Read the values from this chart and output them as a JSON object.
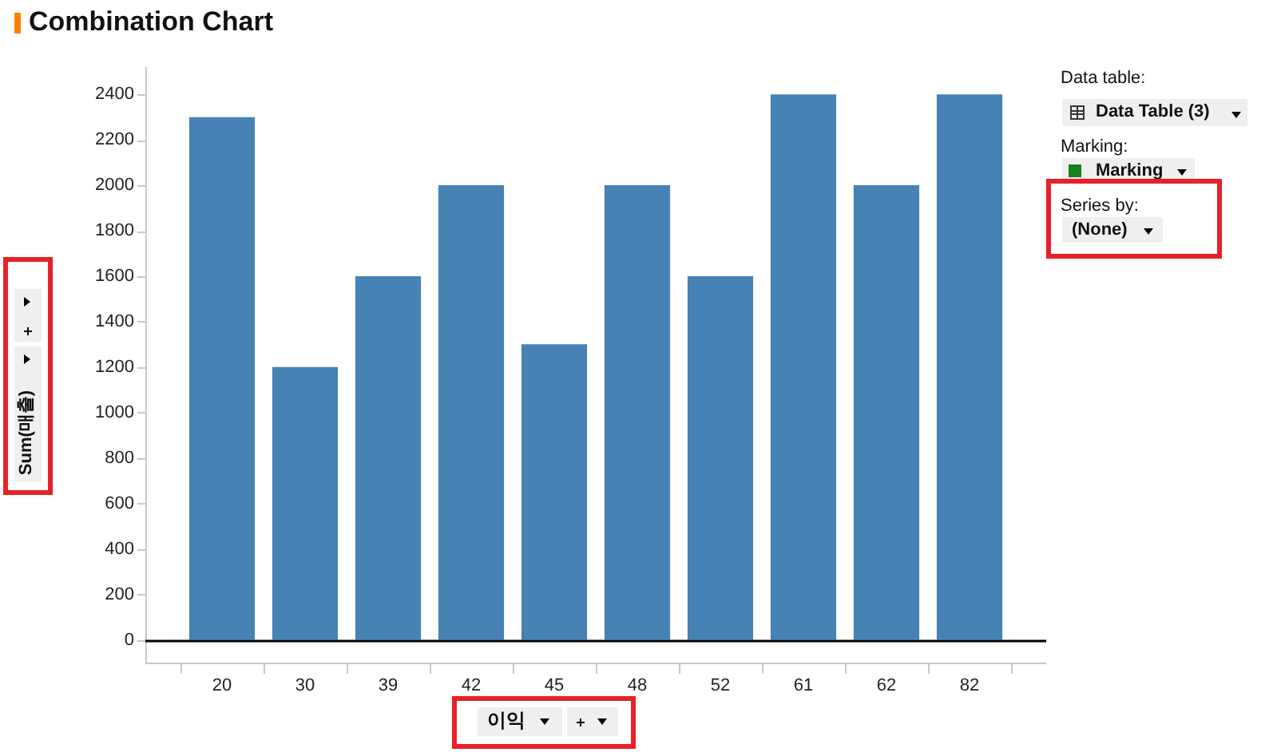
{
  "chart_data": {
    "type": "bar",
    "title": "Combination Chart",
    "xlabel": "이익",
    "ylabel": "Sum(매출)",
    "categories": [
      "20",
      "30",
      "39",
      "42",
      "45",
      "48",
      "52",
      "61",
      "62",
      "82"
    ],
    "values": [
      2300,
      1200,
      1600,
      2000,
      1300,
      2000,
      1600,
      2400,
      2000,
      2400
    ],
    "color": "#4682b4",
    "ylim": [
      -100,
      2520
    ],
    "yticks": [
      0,
      200,
      400,
      600,
      800,
      1000,
      1200,
      1400,
      1600,
      1800,
      2000,
      2200,
      2400
    ],
    "ref_lines": [
      {
        "axis": "y",
        "value": 0,
        "color": "#000000"
      }
    ],
    "annotations": [
      "Data table:",
      "Data Table (3)",
      "Marking:",
      "Marking",
      "Series by:",
      "(None)"
    ]
  }
}
